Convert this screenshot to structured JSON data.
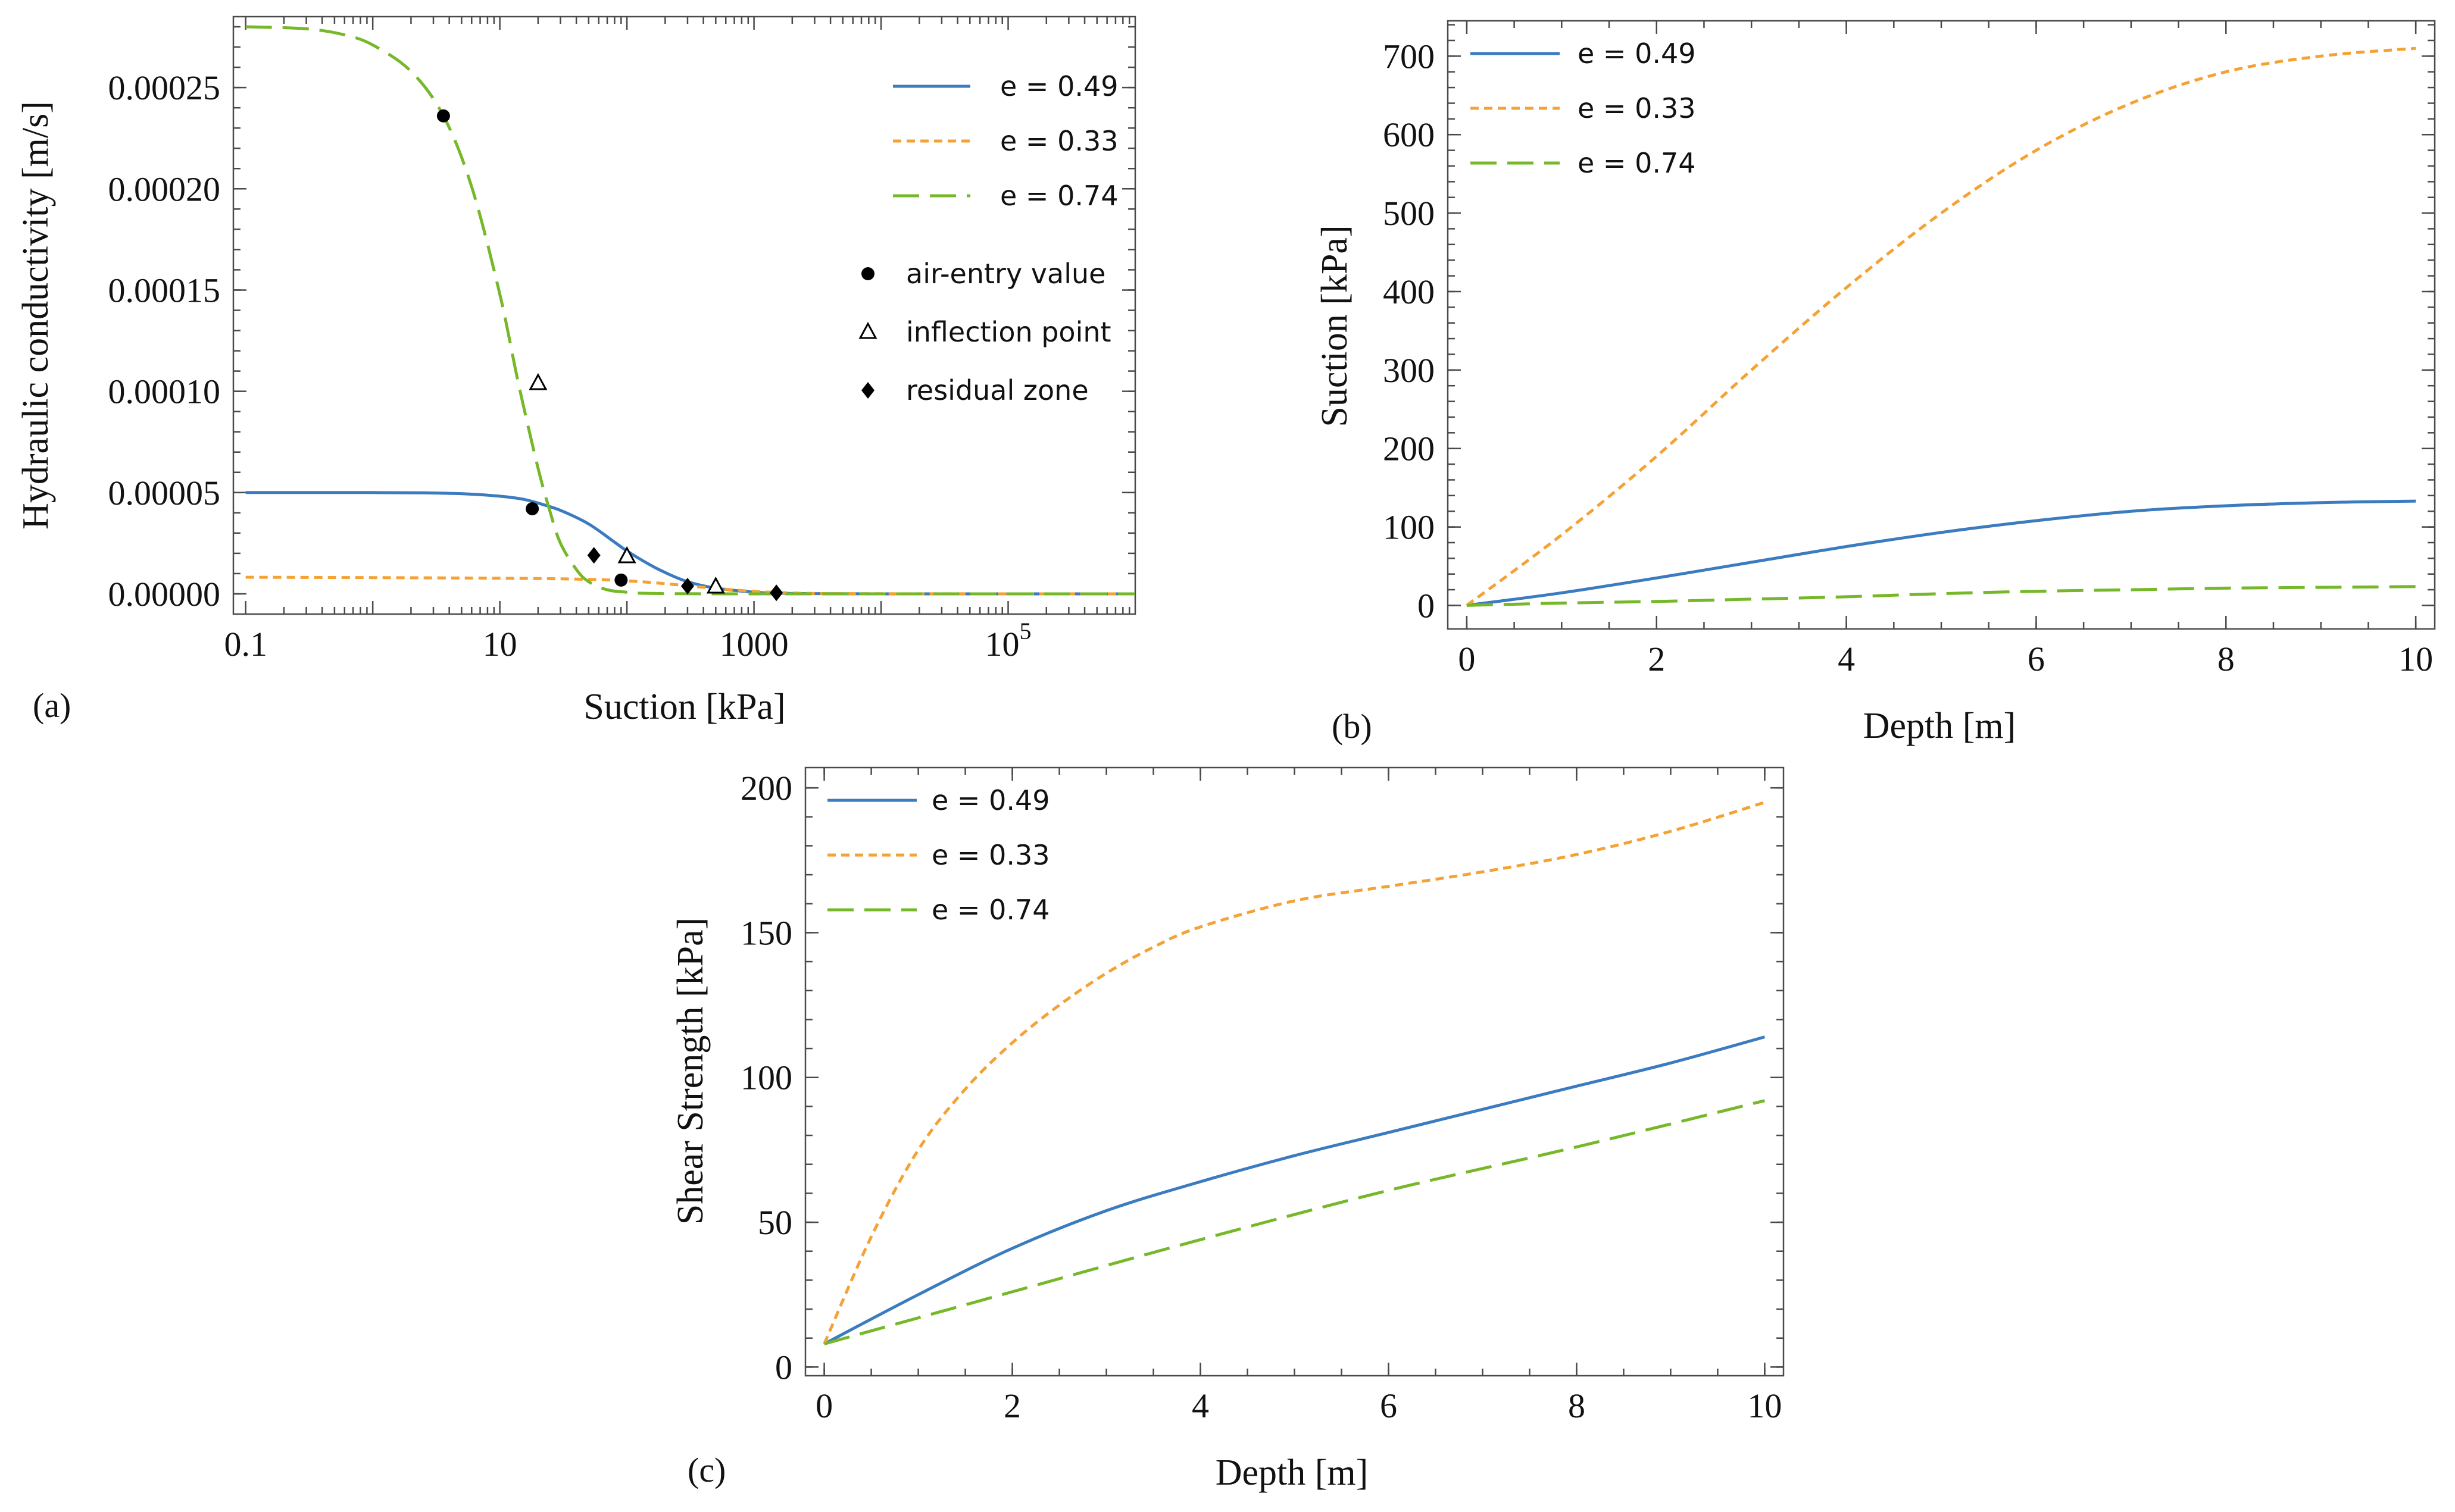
{
  "colors": {
    "e049": "#3b7bbf",
    "e033": "#f5a235",
    "e074": "#76b82a",
    "axis": "#4a4a4a",
    "marker": "#000000"
  },
  "chart_data": [
    {
      "type": "line",
      "panel_label": "(a)",
      "xlabel": "Suction [kPa]",
      "ylabel": "Hydraulic conductivity [m/s]",
      "xscale": "log",
      "xlim": [
        0.08,
        1000000
      ],
      "ylim": [
        -1e-05,
        0.000285
      ],
      "x_ticks": [
        {
          "value": 0.1,
          "label": "0.1"
        },
        {
          "value": 10,
          "label": "10"
        },
        {
          "value": 1000,
          "label": "1000"
        },
        {
          "value": 100000,
          "label": "10^5"
        }
      ],
      "y_ticks": [
        {
          "value": 0,
          "label": "0.00000"
        },
        {
          "value": 5e-05,
          "label": "0.00005"
        },
        {
          "value": 0.0001,
          "label": "0.00010"
        },
        {
          "value": 0.00015,
          "label": "0.00015"
        },
        {
          "value": 0.0002,
          "label": "0.00020"
        },
        {
          "value": 0.00025,
          "label": "0.00025"
        }
      ],
      "legend_position": "top-right",
      "series": [
        {
          "name": "e = 0.49",
          "color_key": "e049",
          "style": "solid",
          "x": [
            0.1,
            1,
            3,
            6,
            10,
            15,
            20,
            30,
            50,
            80,
            100,
            150,
            200,
            300,
            500,
            1000,
            1500,
            3000,
            10000,
            100000,
            1000000
          ],
          "y": [
            5e-05,
            5e-05,
            4.98e-05,
            4.92e-05,
            4.82e-05,
            4.68e-05,
            4.48e-05,
            4.12e-05,
            3.45e-05,
            2.55e-05,
            2.12e-05,
            1.45e-05,
            1.05e-05,
            6e-06,
            2.8e-06,
            8e-07,
            3e-07,
            1e-07,
            0,
            0,
            0
          ]
        },
        {
          "name": "e = 0.33",
          "color_key": "e033",
          "style": "dashed",
          "x": [
            0.1,
            1,
            10,
            30,
            60,
            100,
            150,
            200,
            300,
            500,
            700,
            1000,
            2000,
            5000,
            100000,
            1000000
          ],
          "y": [
            8.2e-06,
            8e-06,
            7.7e-06,
            7.4e-06,
            7e-06,
            6.4e-06,
            5.7e-06,
            5e-06,
            4e-06,
            2.7e-06,
            1.9e-06,
            1.2e-06,
            4e-07,
            1e-07,
            0,
            0
          ]
        },
        {
          "name": "e = 0.74",
          "color_key": "e074",
          "style": "longdash",
          "x": [
            0.1,
            0.3,
            0.6,
            1,
            2,
            3.6,
            6,
            10,
            14,
            20,
            25,
            30,
            40,
            50,
            70,
            100,
            150,
            1000,
            1000000
          ],
          "y": [
            0.00028,
            0.000279,
            0.000276,
            0.000271,
            0.000258,
            0.000236,
            0.000201,
            0.000148,
            0.000104,
            6.2e-05,
            4e-05,
            2.5e-05,
            1.2e-05,
            6e-06,
            2e-06,
            8e-07,
            2e-07,
            0,
            0
          ]
        }
      ],
      "markers": [
        {
          "kind": "air-entry value",
          "shape": "circle",
          "points": [
            [
              3.6,
              0.000236
            ],
            [
              18,
              4.2e-05
            ],
            [
              90,
              6.8e-06
            ]
          ]
        },
        {
          "kind": "inflection point",
          "shape": "triangle",
          "points": [
            [
              20,
              0.000104
            ],
            [
              100,
              1.85e-05
            ],
            [
              500,
              3.5e-06
            ]
          ]
        },
        {
          "kind": "residual zone",
          "shape": "diamond",
          "points": [
            [
              55,
              1.9e-05
            ],
            [
              300,
              3.8e-06
            ],
            [
              1500,
              5e-07
            ]
          ]
        }
      ]
    },
    {
      "type": "line",
      "panel_label": "(b)",
      "xlabel": "Depth [m]",
      "ylabel": "Suction [kPa]",
      "xlim": [
        -0.2,
        10.2
      ],
      "ylim": [
        -30,
        745
      ],
      "x_ticks": [
        0,
        2,
        4,
        6,
        8,
        10
      ],
      "y_ticks": [
        0,
        100,
        200,
        300,
        400,
        500,
        600,
        700
      ],
      "legend_position": "top-left",
      "series": [
        {
          "name": "e = 0.49",
          "color_key": "e049",
          "style": "solid",
          "x": [
            0,
            1,
            2,
            3,
            4,
            5,
            6,
            7,
            8,
            9,
            10
          ],
          "y": [
            0,
            16,
            35,
            55,
            75,
            93,
            108,
            120,
            127,
            131,
            133
          ]
        },
        {
          "name": "e = 0.33",
          "color_key": "e033",
          "style": "dashed",
          "x": [
            0,
            1,
            2,
            3,
            4,
            5,
            6,
            7,
            8,
            9,
            10
          ],
          "y": [
            0,
            90,
            190,
            300,
            405,
            500,
            580,
            640,
            680,
            700,
            710
          ]
        },
        {
          "name": "e = 0.74",
          "color_key": "e074",
          "style": "longdash",
          "x": [
            0,
            1,
            2,
            3,
            4,
            5,
            6,
            7,
            8,
            9,
            10
          ],
          "y": [
            0,
            3,
            5,
            8,
            11,
            15,
            18,
            20,
            22,
            23,
            24
          ]
        }
      ]
    },
    {
      "type": "line",
      "panel_label": "(c)",
      "xlabel": "Depth [m]",
      "ylabel": "Shear Strength [kPa]",
      "xlim": [
        -0.2,
        10.2
      ],
      "ylim": [
        -3,
        207
      ],
      "x_ticks": [
        0,
        2,
        4,
        6,
        8,
        10
      ],
      "y_ticks": [
        0,
        50,
        100,
        150,
        200
      ],
      "legend_position": "top-left",
      "series": [
        {
          "name": "e = 0.49",
          "color_key": "e049",
          "style": "solid",
          "x": [
            0,
            1,
            2,
            3,
            4,
            5,
            6,
            7,
            8,
            9,
            10
          ],
          "y": [
            8,
            25,
            41,
            54,
            64,
            73,
            81,
            89,
            97,
            105,
            114
          ]
        },
        {
          "name": "e = 0.33",
          "color_key": "e033",
          "style": "dashed",
          "x": [
            0,
            0.5,
            1,
            1.5,
            2,
            2.5,
            3,
            3.5,
            4,
            5,
            6,
            7,
            8,
            9,
            10
          ],
          "y": [
            8,
            45,
            75,
            96,
            112,
            125,
            136,
            145,
            152,
            161,
            166,
            171,
            177,
            185,
            195
          ]
        },
        {
          "name": "e = 0.74",
          "color_key": "e074",
          "style": "longdash",
          "x": [
            0,
            2,
            4,
            6,
            8,
            10
          ],
          "y": [
            8,
            26,
            44,
            61,
            76,
            92
          ]
        }
      ]
    }
  ]
}
